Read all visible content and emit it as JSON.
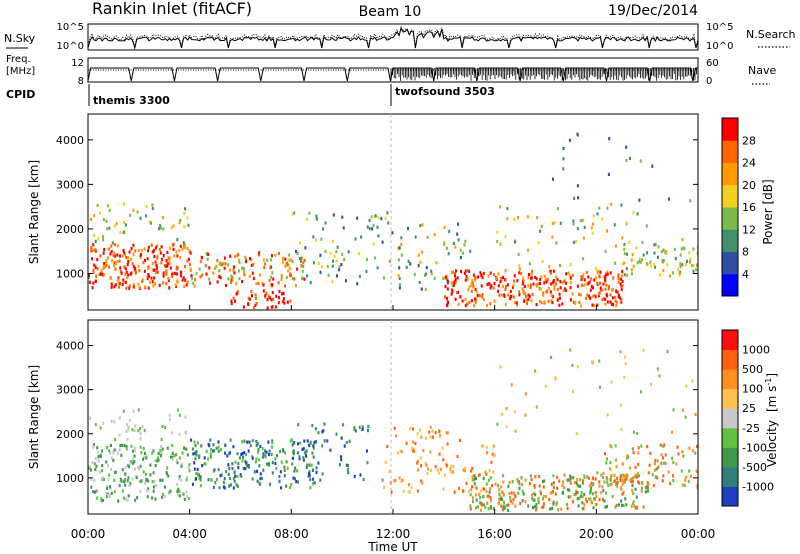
{
  "header": {
    "station": "Rankin Inlet (fitACF)",
    "beam": "Beam 10",
    "date": "19/Dec/2014"
  },
  "chart_data": [
    {
      "type": "line",
      "panel": "noise",
      "left_label": "N.Sky",
      "right_label": "N.Search",
      "left_ticks": [
        "10^5",
        "10^0"
      ],
      "right_ticks": [
        "10^5",
        "10^0"
      ],
      "series": [
        {
          "name": "N.Sky",
          "style": "solid"
        },
        {
          "name": "N.Search",
          "style": "dotted"
        }
      ]
    },
    {
      "type": "line",
      "panel": "frequency",
      "left_label_lines": [
        "Freq.",
        "[MHz]"
      ],
      "right_label": "Nave",
      "left_ticks": [
        "12",
        "8"
      ],
      "right_ticks": [
        "60",
        "0"
      ],
      "series": [
        {
          "name": "Freq.",
          "style": "solid"
        },
        {
          "name": "Nave",
          "style": "dotted"
        }
      ]
    },
    {
      "type": "table",
      "panel": "cpid",
      "label": "CPID",
      "entries": [
        {
          "name": "themis 3300",
          "start_hour": 0
        },
        {
          "name": "twofsound 3503",
          "start_hour": 12
        }
      ]
    },
    {
      "type": "heatmap",
      "panel": "power",
      "ylabel": "Slant Range [km]",
      "yticks": [
        1000,
        2000,
        3000,
        4000
      ],
      "ylim": [
        180,
        4580
      ],
      "xlim": [
        0,
        24
      ],
      "colorbar_label": "Power [dB]",
      "colorbar_ticks": [
        "4",
        "8",
        "12",
        "16",
        "20",
        "24",
        "28"
      ],
      "colors": [
        "#0000ff",
        "#2e4fa4",
        "#40916a",
        "#7dbb48",
        "#f2d020",
        "#ff9a00",
        "#ff6600",
        "#ff0000"
      ]
    },
    {
      "type": "heatmap",
      "panel": "velocity",
      "ylabel": "Slant Range [km]",
      "yticks": [
        1000,
        2000,
        3000,
        4000
      ],
      "ylim": [
        180,
        4580
      ],
      "xlim": [
        0,
        24
      ],
      "xlabel": "Time UT",
      "xticks": [
        "00:00",
        "04:00",
        "08:00",
        "12:00",
        "16:00",
        "20:00",
        "00:00"
      ],
      "colorbar_label_main": "Velocity",
      "colorbar_label_unit": "[m s",
      "colorbar_label_sup": "-1",
      "colorbar_label_close": "]",
      "colorbar_ticks": [
        "1000",
        "500",
        "100",
        "25",
        "-25",
        "-100",
        "-500",
        "-1000"
      ],
      "colors": [
        "#1f3fc0",
        "#2f7f7f",
        "#3c9a4a",
        "#60c040",
        "#c8c8c8",
        "#ffc050",
        "#ff9020",
        "#ff6010",
        "#ff1010"
      ]
    }
  ]
}
